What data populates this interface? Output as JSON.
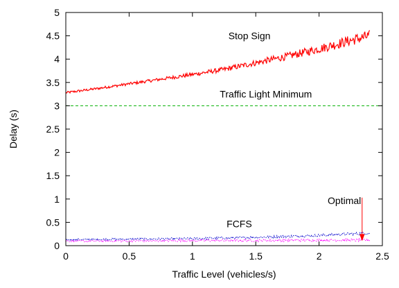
{
  "chart_data": {
    "type": "line",
    "title": "",
    "xlabel": "Traffic Level (vehicles/s)",
    "ylabel": "Delay (s)",
    "xlim": [
      0,
      2.5
    ],
    "ylim": [
      0,
      5
    ],
    "grid": false,
    "legend": "none",
    "x_ticks": [
      "0",
      "0.5",
      "1",
      "1.5",
      "2",
      "2.5"
    ],
    "y_ticks": [
      "0",
      "0.5",
      "1",
      "1.5",
      "2",
      "2.5",
      "3",
      "3.5",
      "4",
      "4.5",
      "5"
    ],
    "series": [
      {
        "name": "Stop Sign",
        "color": "#ff0000",
        "style": "solid",
        "x": [
          0,
          0.25,
          0.5,
          0.75,
          1.0,
          1.25,
          1.5,
          1.75,
          2.0,
          2.25,
          2.4
        ],
        "y": [
          3.28,
          3.37,
          3.47,
          3.57,
          3.67,
          3.78,
          3.92,
          4.06,
          4.22,
          4.4,
          4.5
        ]
      },
      {
        "name": "Traffic Light Minimum",
        "color": "#00b000",
        "style": "dashed",
        "x": [
          0,
          2.5
        ],
        "y": [
          3.0,
          3.0
        ]
      },
      {
        "name": "FCFS",
        "color": "#0000cc",
        "style": "dotted",
        "x": [
          0,
          0.5,
          1.0,
          1.5,
          2.0,
          2.4
        ],
        "y": [
          0.13,
          0.14,
          0.15,
          0.18,
          0.22,
          0.27
        ]
      },
      {
        "name": "",
        "color": "#ff00ff",
        "style": "dotted",
        "x": [
          0,
          0.5,
          1.0,
          1.5,
          2.0,
          2.4
        ],
        "y": [
          0.1,
          0.1,
          0.11,
          0.11,
          0.12,
          0.12
        ]
      }
    ],
    "annotations": [
      {
        "text": "Stop Sign",
        "x": 1.45,
        "y": 4.5
      },
      {
        "text": "Traffic Light Minimum",
        "x": 1.58,
        "y": 3.25
      },
      {
        "text": "FCFS",
        "x": 1.37,
        "y": 0.47
      },
      {
        "text": "Optimal",
        "x": 2.2,
        "y": 0.97,
        "arrow_to": [
          2.34,
          0.12
        ]
      }
    ]
  }
}
